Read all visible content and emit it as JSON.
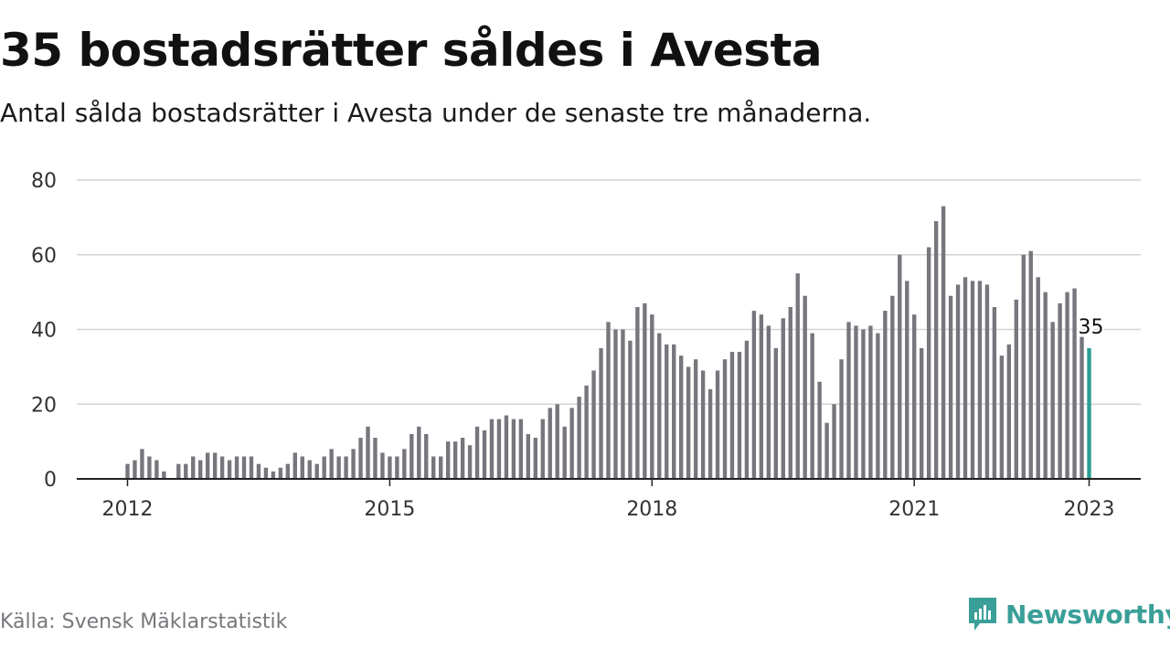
{
  "title": "35 bostadsrätter såldes i Avesta",
  "subtitle": "Antal sålda bostadsrätter i Avesta under de senaste tre månaderna.",
  "source": "Källa: Svensk Mäklarstatistik",
  "brand": {
    "name": "Newsworthy",
    "icon": "newsworthy-logo-icon",
    "color": "#3a9f98"
  },
  "chart_data": {
    "type": "bar",
    "ylim": [
      0,
      80
    ],
    "yticks": [
      0,
      20,
      40,
      60,
      80
    ],
    "xticks": [
      {
        "label": "2012",
        "index": 0
      },
      {
        "label": "2015",
        "index": 36
      },
      {
        "label": "2018",
        "index": 72
      },
      {
        "label": "2021",
        "index": 108
      },
      {
        "label": "2023",
        "index": 132
      }
    ],
    "start": "2012-01",
    "end": "2023-01",
    "values": [
      4,
      5,
      8,
      6,
      5,
      2,
      0,
      4,
      4,
      6,
      5,
      7,
      7,
      6,
      5,
      6,
      6,
      6,
      4,
      3,
      2,
      3,
      4,
      7,
      6,
      5,
      4,
      6,
      8,
      6,
      6,
      8,
      11,
      14,
      11,
      7,
      6,
      6,
      8,
      12,
      14,
      12,
      6,
      6,
      10,
      10,
      11,
      9,
      14,
      13,
      16,
      16,
      17,
      16,
      16,
      12,
      11,
      16,
      19,
      20,
      14,
      19,
      22,
      25,
      29,
      35,
      42,
      40,
      40,
      37,
      46,
      47,
      44,
      39,
      36,
      36,
      33,
      30,
      32,
      29,
      24,
      29,
      32,
      34,
      34,
      37,
      45,
      44,
      41,
      35,
      43,
      46,
      55,
      49,
      39,
      26,
      15,
      20,
      32,
      42,
      41,
      40,
      41,
      39,
      45,
      49,
      60,
      53,
      44,
      35,
      62,
      69,
      73,
      49,
      52,
      54,
      53,
      53,
      52,
      46,
      33,
      36,
      48,
      60,
      61,
      54,
      50,
      42,
      47,
      50,
      51,
      38,
      35
    ],
    "highlight_last": true,
    "highlight_label": "35",
    "bar_color": "#77767d",
    "highlight_color": "#2a9d96",
    "grid": true
  }
}
